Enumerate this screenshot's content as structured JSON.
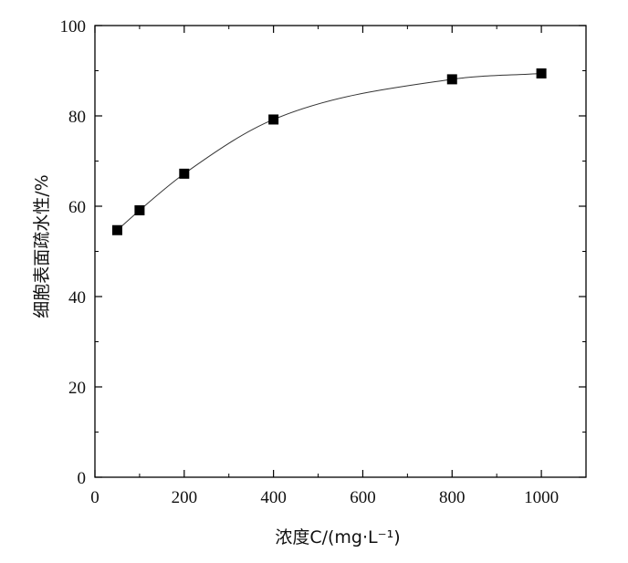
{
  "chart_data": {
    "type": "scatter",
    "title": "",
    "xlabel": "浓度C/(mg·L⁻¹)",
    "ylabel": "细胞表面疏水性/%",
    "xlim": [
      0,
      1100
    ],
    "ylim": [
      0,
      100
    ],
    "x_ticks": [
      0,
      200,
      400,
      600,
      800,
      1000
    ],
    "y_ticks": [
      0,
      20,
      40,
      60,
      80,
      100
    ],
    "x_minor_step": 100,
    "y_minor_step": 10,
    "grid": false,
    "marker": "square",
    "fit_line": true,
    "series": [
      {
        "points": [
          {
            "x": 50,
            "y": 54.7
          },
          {
            "x": 100,
            "y": 59.1
          },
          {
            "x": 200,
            "y": 67.2
          },
          {
            "x": 400,
            "y": 79.2
          },
          {
            "x": 800,
            "y": 88.1
          },
          {
            "x": 1000,
            "y": 89.4
          }
        ]
      }
    ],
    "colors": {
      "marker": "#000000",
      "line": "#333333",
      "axis": "#000000"
    }
  }
}
